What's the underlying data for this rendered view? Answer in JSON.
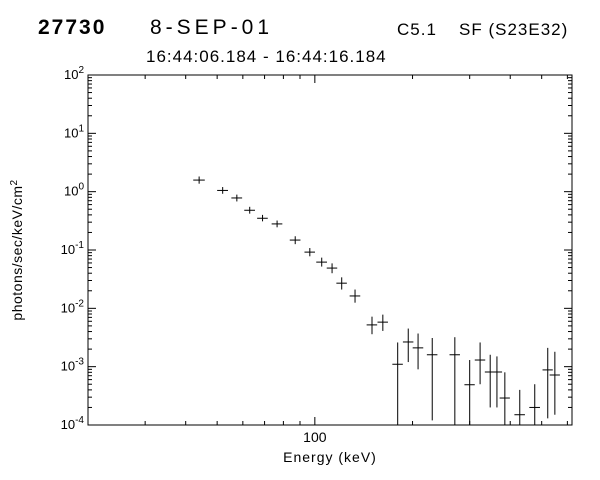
{
  "header": {
    "event_id": "27730",
    "date": "8-SEP-01",
    "goes_class": "C5.1",
    "flare_info": "SF (S23E32)",
    "time_range": "16:44:06.184 - 16:44:16.184"
  },
  "chart_data": {
    "type": "scatter",
    "subtype": "log-log spectrum with error bars",
    "title": "16:44:06.184 - 16:44:16.184",
    "xlabel": "Energy (keV)",
    "ylabel_base": "photons/sec/keV/cm",
    "ylabel_sup": "2",
    "xscale": "log",
    "yscale": "log",
    "xlim": [
      20,
      620
    ],
    "ylim": [
      0.0001,
      100
    ],
    "grid": false,
    "legend": "none",
    "x_major_ticks": [
      100
    ],
    "x_minor_ticks": [
      30,
      40,
      50,
      60,
      70,
      80,
      90,
      200,
      300,
      400,
      500,
      600
    ],
    "y_major_exponents": [
      2,
      1,
      0,
      -1,
      -2,
      -3,
      -4
    ],
    "marker": "cross-error-bars",
    "color": "#000000",
    "points": [
      {
        "e": 44,
        "ew": 1.8,
        "f": 1.58,
        "flo": 1.37,
        "fhi": 1.82
      },
      {
        "e": 52,
        "ew": 2.0,
        "f": 1.05,
        "flo": 0.92,
        "fhi": 1.2
      },
      {
        "e": 57.5,
        "ew": 2.2,
        "f": 0.78,
        "flo": 0.68,
        "fhi": 0.89
      },
      {
        "e": 63,
        "ew": 2.4,
        "f": 0.48,
        "flo": 0.42,
        "fhi": 0.55
      },
      {
        "e": 69,
        "ew": 2.6,
        "f": 0.35,
        "flo": 0.31,
        "fhi": 0.4
      },
      {
        "e": 76.5,
        "ew": 2.9,
        "f": 0.28,
        "flo": 0.245,
        "fhi": 0.32
      },
      {
        "e": 87,
        "ew": 3.3,
        "f": 0.148,
        "flo": 0.126,
        "fhi": 0.172
      },
      {
        "e": 96.5,
        "ew": 3.6,
        "f": 0.092,
        "flo": 0.078,
        "fhi": 0.108
      },
      {
        "e": 105,
        "ew": 4.0,
        "f": 0.062,
        "flo": 0.052,
        "fhi": 0.074
      },
      {
        "e": 113,
        "ew": 4.2,
        "f": 0.049,
        "flo": 0.04,
        "fhi": 0.059
      },
      {
        "e": 121,
        "ew": 4.5,
        "f": 0.027,
        "flo": 0.021,
        "fhi": 0.034
      },
      {
        "e": 133,
        "ew": 5.0,
        "f": 0.0163,
        "flo": 0.0125,
        "fhi": 0.021
      },
      {
        "e": 150,
        "ew": 5.6,
        "f": 0.0052,
        "flo": 0.0036,
        "fhi": 0.0072
      },
      {
        "e": 162,
        "ew": 6.0,
        "f": 0.0058,
        "flo": 0.0041,
        "fhi": 0.0078
      },
      {
        "e": 180,
        "ew": 6.7,
        "f": 0.0011,
        "flo": 0.0001,
        "fhi": 0.0026
      },
      {
        "e": 194,
        "ew": 7.2,
        "f": 0.00265,
        "flo": 0.0012,
        "fhi": 0.0045
      },
      {
        "e": 208,
        "ew": 7.8,
        "f": 0.0021,
        "flo": 0.0009,
        "fhi": 0.0037
      },
      {
        "e": 230,
        "ew": 8.6,
        "f": 0.0016,
        "flo": 0.00012,
        "fhi": 0.0031
      },
      {
        "e": 270,
        "ew": 10,
        "f": 0.0016,
        "flo": 0.0001,
        "fhi": 0.0032
      },
      {
        "e": 300,
        "ew": 11,
        "f": 0.00049,
        "flo": 0.0001,
        "fhi": 0.0013
      },
      {
        "e": 323,
        "ew": 12,
        "f": 0.0013,
        "flo": 0.0005,
        "fhi": 0.0026
      },
      {
        "e": 347,
        "ew": 13,
        "f": 0.00081,
        "flo": 0.0002,
        "fhi": 0.0016
      },
      {
        "e": 364,
        "ew": 13.5,
        "f": 0.00081,
        "flo": 0.0002,
        "fhi": 0.0015
      },
      {
        "e": 385,
        "ew": 14,
        "f": 0.00029,
        "flo": 0.0001,
        "fhi": 0.0008
      },
      {
        "e": 428,
        "ew": 16,
        "f": 0.00015,
        "flo": 0.0001,
        "fhi": 0.0004
      },
      {
        "e": 476,
        "ew": 18,
        "f": 0.0002,
        "flo": 0.0001,
        "fhi": 0.0005
      },
      {
        "e": 522,
        "ew": 19,
        "f": 0.00088,
        "flo": 0.00013,
        "fhi": 0.0021
      },
      {
        "e": 549,
        "ew": 20,
        "f": 0.00072,
        "flo": 0.00015,
        "fhi": 0.0018
      }
    ]
  }
}
